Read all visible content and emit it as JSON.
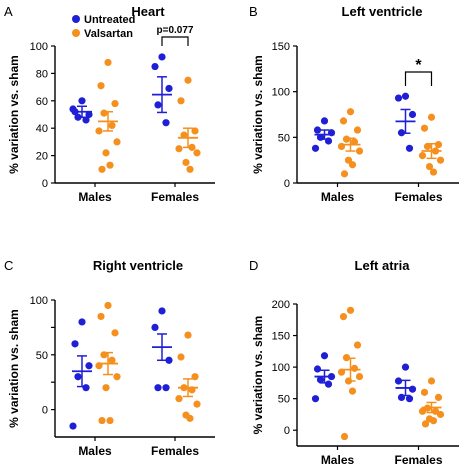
{
  "colors": {
    "untreated": "#1f1fd6",
    "valsartan": "#f5901e",
    "axis": "#000000"
  },
  "legend": {
    "untreated": "Untreated",
    "valsartan": "Valsartan"
  },
  "chart_data": [
    {
      "panel_letter": "A",
      "type": "scatter",
      "title": "Heart",
      "ylabel": "% variation vs. sham",
      "ylim": [
        0,
        100
      ],
      "yticks": [
        0,
        20,
        40,
        60,
        80,
        100
      ],
      "categories": [
        "Males",
        "Females"
      ],
      "legend_placement": "top-left",
      "annotations": [
        {
          "type": "bracket",
          "text": "p=0.077",
          "category": "Females"
        }
      ],
      "series": [
        {
          "name": "Untreated",
          "mean": [
            52,
            64.5
          ],
          "sem": [
            4,
            13
          ],
          "points": [
            [
              60,
              52,
              50,
              48,
              46,
              54
            ],
            [
              92,
              85,
              69,
              57,
              44
            ]
          ]
        },
        {
          "name": "Valsartan",
          "mean": [
            45,
            33
          ],
          "sem": [
            7,
            7
          ],
          "points": [
            [
              88,
              71,
              58,
              51,
              42,
              38,
              30,
              22,
              13,
              10
            ],
            [
              75,
              60,
              38,
              35,
              26,
              25,
              22,
              15,
              10
            ]
          ]
        }
      ]
    },
    {
      "panel_letter": "B",
      "type": "scatter",
      "title": "Left ventricle",
      "ylabel": "% variation vs. sham",
      "ylim": [
        0,
        150
      ],
      "yticks": [
        0,
        50,
        100,
        150
      ],
      "categories": [
        "Males",
        "Females"
      ],
      "annotations": [
        {
          "type": "bracket",
          "text": "*",
          "category": "Females"
        }
      ],
      "series": [
        {
          "name": "Untreated",
          "mean": [
            53,
            67.5
          ],
          "sem": [
            5,
            13
          ],
          "points": [
            [
              68,
              58,
              55,
              50,
              46,
              38
            ],
            [
              95,
              93,
              75,
              55,
              38
            ]
          ]
        },
        {
          "name": "Valsartan",
          "mean": [
            42,
            35
          ],
          "sem": [
            7,
            8
          ],
          "points": [
            [
              78,
              68,
              58,
              48,
              45,
              40,
              35,
              25,
              20,
              10
            ],
            [
              72,
              60,
              42,
              40,
              35,
              30,
              25,
              18,
              12
            ]
          ]
        }
      ]
    },
    {
      "panel_letter": "C",
      "type": "scatter",
      "title": "Right ventricle",
      "ylabel": "% variation vs. sham",
      "ylim": [
        -25,
        100
      ],
      "yticks": [
        0,
        25,
        50,
        75,
        100
      ],
      "ytick_labels": [
        "0",
        "50",
        "100"
      ],
      "ytick_label_values": [
        0,
        50,
        100
      ],
      "categories": [
        "Males",
        "Females"
      ],
      "series": [
        {
          "name": "Untreated",
          "mean": [
            35,
            57
          ],
          "sem": [
            14,
            12
          ],
          "points": [
            [
              80,
              60,
              40,
              30,
              20,
              -15
            ],
            [
              90,
              75,
              45,
              20,
              20
            ]
          ]
        },
        {
          "name": "Valsartan",
          "mean": [
            42,
            20
          ],
          "sem": [
            10,
            8
          ],
          "points": [
            [
              95,
              85,
              70,
              50,
              45,
              40,
              30,
              20,
              -10,
              -10
            ],
            [
              68,
              48,
              30,
              20,
              18,
              10,
              5,
              -5,
              -8
            ]
          ]
        }
      ]
    },
    {
      "panel_letter": "D",
      "type": "scatter",
      "title": "Left atria",
      "ylabel": "% variation vs. sham",
      "ylim": [
        -25,
        200
      ],
      "yticks": [
        0,
        50,
        100,
        150,
        200
      ],
      "categories": [
        "Males",
        "Females"
      ],
      "series": [
        {
          "name": "Untreated",
          "mean": [
            85,
            67
          ],
          "sem": [
            10,
            12
          ],
          "points": [
            [
              118,
              97,
              85,
              80,
              73,
              50
            ],
            [
              100,
              78,
              65,
              52,
              50
            ]
          ]
        },
        {
          "name": "Valsartan",
          "mean": [
            96,
            36
          ],
          "sem": [
            18,
            8
          ],
          "points": [
            [
              190,
              180,
              135,
              115,
              98,
              92,
              85,
              78,
              62,
              -10
            ],
            [
              78,
              60,
              52,
              35,
              30,
              30,
              25,
              18,
              15,
              10
            ]
          ]
        }
      ]
    }
  ]
}
